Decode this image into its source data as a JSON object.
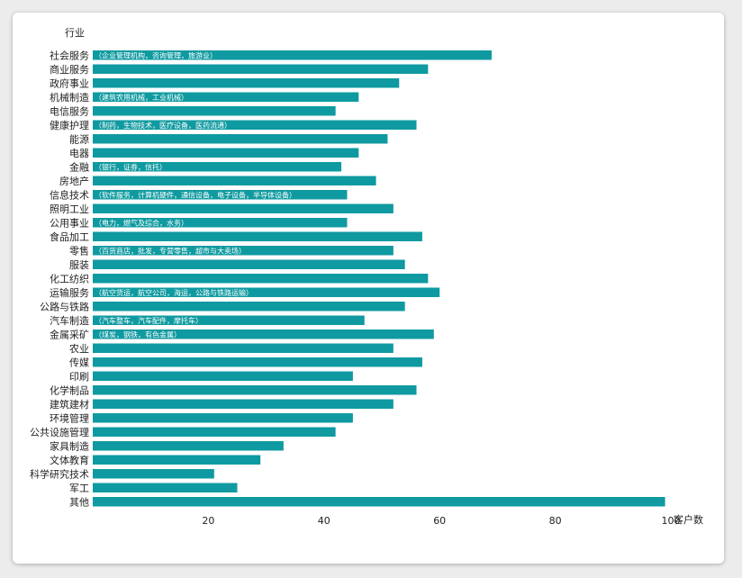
{
  "chart_data": {
    "type": "bar",
    "orientation": "horizontal",
    "ylabel": "行业",
    "xlabel": "客户数",
    "xticks": [
      20,
      40,
      60,
      80,
      100
    ],
    "xlim": [
      0,
      104
    ],
    "bar_color": "#0e9aa0",
    "grid": false,
    "categories": [
      "社会服务",
      "商业服务",
      "政府事业",
      "机械制造",
      "电信服务",
      "健康护理",
      "能源",
      "电器",
      "金融",
      "房地产",
      "信息技术",
      "照明工业",
      "公用事业",
      "食品加工",
      "零售",
      "服装",
      "化工纺织",
      "运输服务",
      "公路与铁路",
      "汽车制造",
      "金属采矿",
      "农业",
      "传媒",
      "印刷",
      "化学制品",
      "建筑建材",
      "环境管理",
      "公共设施管理",
      "家具制造",
      "文体教育",
      "科学研究技术",
      "军工",
      "其他"
    ],
    "values": [
      69,
      58,
      53,
      46,
      42,
      56,
      51,
      46,
      43,
      49,
      44,
      52,
      44,
      57,
      52,
      54,
      58,
      60,
      54,
      47,
      59,
      52,
      57,
      45,
      56,
      52,
      45,
      42,
      33,
      29,
      21,
      25,
      99
    ],
    "notes": {
      "社会服务": "（企业管理机构，咨询管理，旅游业）",
      "机械制造": "（建筑农用机械，工业机械）",
      "健康护理": "（制药，生物技术，医疗设备，医药流通）",
      "金融": "（银行，证券，信托）",
      "信息技术": "（软件服务，计算机硬件，通信设备，电子设备，半导体设备）",
      "公用事业": "（电力，燃气及综合，水务）",
      "零售": "（百货商店，批发，专营零售，超市与大卖场）",
      "运输服务": "（航空货运，航空公司，海运，公路与铁路运输）",
      "汽车制造": "（汽车整车，汽车配件，摩托车）",
      "金属采矿": "（煤炭，钢铁，有色金属）"
    }
  }
}
